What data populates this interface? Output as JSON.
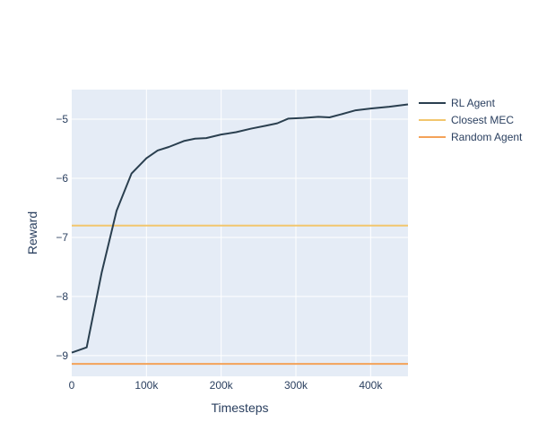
{
  "chart_data": {
    "type": "line",
    "title": "",
    "xlabel": "Timesteps",
    "ylabel": "Reward",
    "xlim": [
      0,
      450000
    ],
    "ylim": [
      -9.35,
      -4.5
    ],
    "x_ticks": [
      0,
      100000,
      200000,
      300000,
      400000
    ],
    "x_tick_labels": [
      "0",
      "100k",
      "200k",
      "300k",
      "400k"
    ],
    "y_ticks": [
      -9,
      -8,
      -7,
      -6,
      -5
    ],
    "y_tick_labels": [
      "−9",
      "−8",
      "−7",
      "−6",
      "−5"
    ],
    "grid": true,
    "legend_position": "right",
    "background_color": "#e5ecf6",
    "grid_color": "#ffffff",
    "series": [
      {
        "name": "RL Agent",
        "color": "#2a3f4f",
        "x": [
          0,
          20000,
          40000,
          60000,
          80000,
          100000,
          115000,
          130000,
          150000,
          165000,
          180000,
          200000,
          220000,
          240000,
          260000,
          275000,
          290000,
          310000,
          330000,
          345000,
          360000,
          380000,
          400000,
          425000,
          450000
        ],
        "y": [
          -8.95,
          -8.86,
          -7.6,
          -6.55,
          -5.92,
          -5.66,
          -5.53,
          -5.47,
          -5.37,
          -5.33,
          -5.32,
          -5.26,
          -5.22,
          -5.16,
          -5.11,
          -5.07,
          -4.99,
          -4.98,
          -4.96,
          -4.97,
          -4.92,
          -4.85,
          -4.82,
          -4.79,
          -4.75
        ]
      },
      {
        "name": "Closest MEC",
        "color": "#f2c66d",
        "x": [
          0,
          450000
        ],
        "y": [
          -6.8,
          -6.8
        ]
      },
      {
        "name": "Random Agent",
        "color": "#f4a259",
        "x": [
          0,
          450000
        ],
        "y": [
          -9.14,
          -9.14
        ]
      }
    ]
  }
}
